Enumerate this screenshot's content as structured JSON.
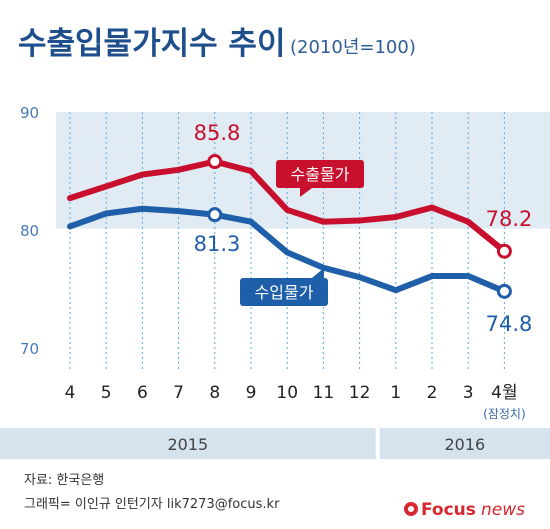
{
  "header": {
    "title": "수출입물가지수 추이",
    "subtitle": "(2010년=100)"
  },
  "chart_data": {
    "type": "line",
    "title": "수출입물가지수 추이",
    "subtitle": "(2010년=100)",
    "categories": [
      "4",
      "5",
      "6",
      "7",
      "8",
      "9",
      "10",
      "11",
      "12",
      "1",
      "2",
      "3",
      "4월"
    ],
    "category_note": "(잠정치)",
    "years": [
      {
        "label": "2015",
        "from_index": 0,
        "to_index": 8
      },
      {
        "label": "2016",
        "from_index": 9,
        "to_index": 12
      }
    ],
    "y_ticks": [
      70,
      80,
      90
    ],
    "ylim": [
      70,
      90
    ],
    "series": [
      {
        "name": "수출물가",
        "color": "#c8102e",
        "values": [
          82.7,
          83.7,
          84.7,
          85.1,
          85.8,
          85.0,
          81.7,
          80.7,
          80.8,
          81.1,
          81.9,
          80.7,
          78.2
        ],
        "labeled_points": [
          {
            "index": 4,
            "text": "85.8"
          },
          {
            "index": 12,
            "text": "78.2"
          }
        ]
      },
      {
        "name": "수입물가",
        "color": "#1f5ea8",
        "values": [
          80.3,
          81.4,
          81.8,
          81.6,
          81.3,
          80.7,
          78.1,
          76.8,
          76.0,
          74.9,
          76.1,
          76.1,
          74.8
        ],
        "labeled_points": [
          {
            "index": 4,
            "text": "81.3"
          },
          {
            "index": 12,
            "text": "74.8"
          }
        ]
      }
    ]
  },
  "footer": {
    "source": "자료: 한국은행",
    "credit": "그래픽= 이인규 인턴기자 lik7273@focus.kr",
    "brand_focus": "Focus",
    "brand_news": "news"
  }
}
